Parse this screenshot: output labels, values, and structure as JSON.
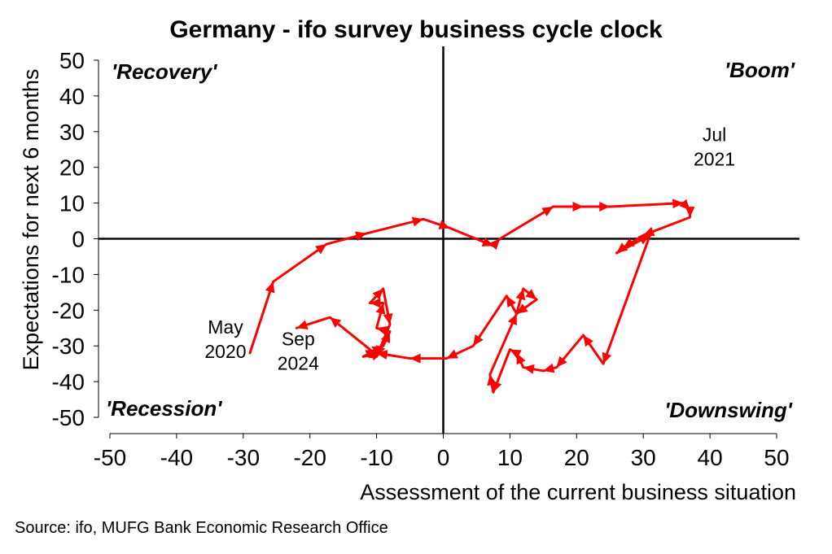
{
  "chart_data": {
    "type": "line",
    "title": "Germany - ifo survey business cycle clock",
    "xlabel": "Assessment of the current business situation",
    "ylabel": "Expectations for next 6 months",
    "xlim": [
      -50,
      50
    ],
    "ylim": [
      -50,
      50
    ],
    "x_ticks": [
      -50,
      -40,
      -30,
      -20,
      -10,
      0,
      10,
      20,
      30,
      40,
      50
    ],
    "y_ticks": [
      -50,
      -40,
      -30,
      -20,
      -10,
      0,
      10,
      20,
      30,
      40,
      50
    ],
    "grid": false,
    "line_color": "#ff0000",
    "quadrant_labels": [
      {
        "text": "'Recovery'",
        "position": "top-left"
      },
      {
        "text": "'Boom'",
        "position": "top-right"
      },
      {
        "text": "'Recession'",
        "position": "bottom-left"
      },
      {
        "text": "'Downswing'",
        "position": "bottom-right"
      }
    ],
    "annotations": [
      {
        "lines": [
          "May",
          "2020"
        ],
        "x": -29,
        "y": -32
      },
      {
        "lines": [
          "Jul",
          "2021"
        ],
        "x": 37,
        "y": 8
      },
      {
        "lines": [
          "Sep",
          "2024"
        ],
        "x": -22,
        "y": -25
      }
    ],
    "series": [
      {
        "x": [
          -29,
          -25.5,
          -17.5,
          -11.5,
          -3,
          1,
          7.5,
          8.5,
          16.5,
          21,
          25,
          36,
          37,
          37,
          30,
          27,
          26,
          31,
          24,
          21,
          17,
          15,
          12,
          11,
          10,
          7.5,
          7,
          11,
          12,
          14,
          11,
          9.5,
          4.5,
          0.5,
          -5,
          -10,
          -12,
          -10,
          -9,
          -8,
          -10,
          -9,
          -11,
          -9,
          -8,
          -10,
          -11,
          -17,
          -22
        ],
        "y": [
          -32,
          -12,
          -1.5,
          1.5,
          5.5,
          3,
          -2,
          0,
          9,
          9,
          9,
          10,
          8,
          6,
          1,
          -2.5,
          -4,
          1,
          -35,
          -27,
          -36,
          -37,
          -36,
          -32,
          -31,
          -43,
          -38,
          -21,
          -14,
          -17,
          -21,
          -16,
          -30,
          -33.5,
          -33.5,
          -32,
          -33,
          -31,
          -30,
          -26,
          -25,
          -18,
          -18,
          -14,
          -24,
          -33,
          -31,
          -22,
          -25
        ]
      }
    ]
  },
  "source": "Source: ifo, MUFG Bank Economic Research Office"
}
